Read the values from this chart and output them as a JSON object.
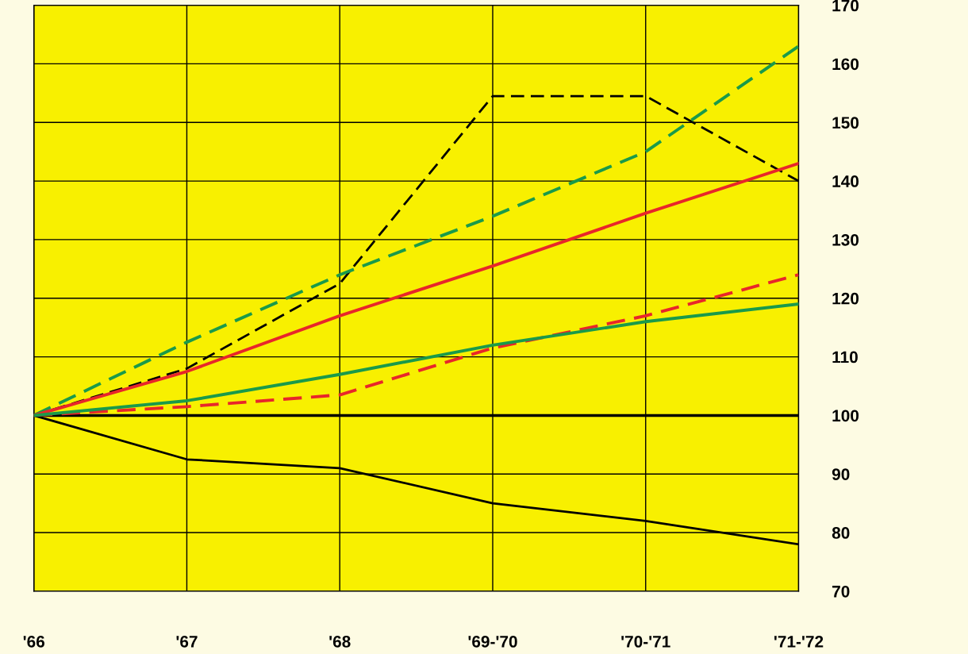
{
  "chart_data": {
    "type": "line",
    "categories": [
      "'66",
      "'67",
      "'68",
      "'69-'70",
      "'70-'71",
      "'71-'72"
    ],
    "series": [
      {
        "color": "#000000",
        "line_style": "solid",
        "values": [
          100,
          92.5,
          91,
          85,
          82,
          78
        ]
      },
      {
        "color": "#000000",
        "line_style": "dashed",
        "values": [
          100,
          108,
          122.5,
          154.5,
          154.5,
          140
        ]
      },
      {
        "color": "#1a9a4a",
        "line_style": "dashed",
        "values": [
          100,
          112.5,
          124,
          134,
          145,
          163
        ]
      },
      {
        "color": "#e8262a",
        "line_style": "solid",
        "values": [
          100,
          107.5,
          117,
          125.5,
          134.5,
          143
        ]
      },
      {
        "color": "#e8262a",
        "line_style": "dashed",
        "values": [
          100,
          101.5,
          103.5,
          111.5,
          117,
          124
        ]
      },
      {
        "color": "#1a9a4a",
        "line_style": "solid",
        "values": [
          100,
          102.5,
          107,
          112,
          116,
          119
        ]
      }
    ],
    "ylim": [
      70,
      170
    ],
    "yticks": [
      70,
      80,
      90,
      100,
      110,
      120,
      130,
      140,
      150,
      160,
      170
    ],
    "ref_lines": [
      {
        "axis": "y",
        "value": 100,
        "color": "#000000"
      }
    ],
    "grid": true,
    "marker": "none"
  }
}
